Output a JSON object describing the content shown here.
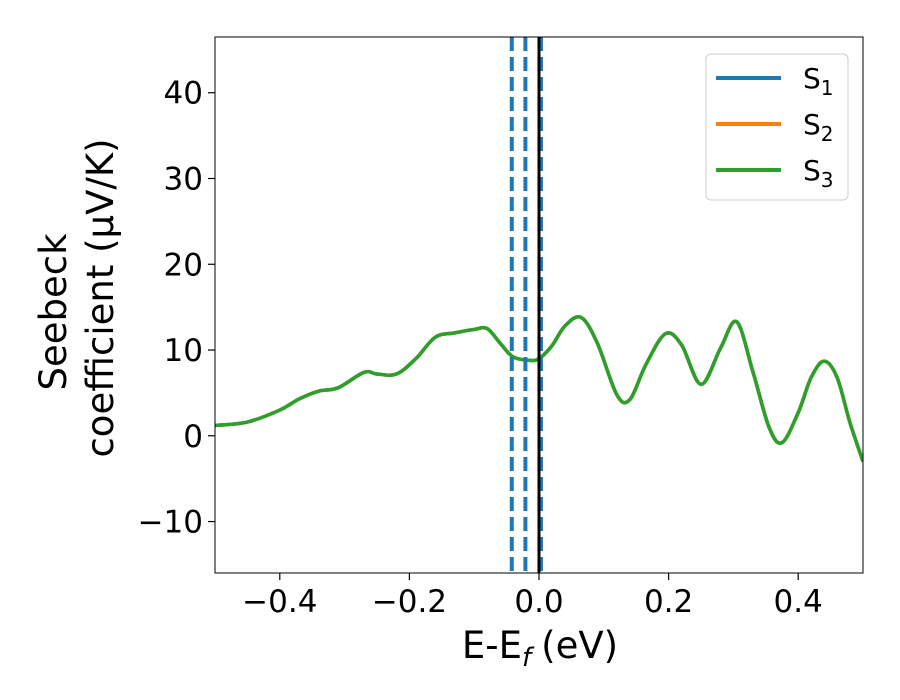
{
  "chart_data": {
    "type": "line",
    "title": "",
    "xlabel": "E-E",
    "xlabel_sub": "f",
    "xlabel_unit": "(eV)",
    "ylabel_line1": "Seebeck",
    "ylabel_line2": "coefficient  (μV/K)",
    "xlim": [
      -0.5,
      0.5
    ],
    "ylim": [
      -16,
      46.5
    ],
    "xticks": [
      -0.4,
      -0.2,
      0.0,
      0.2,
      0.4
    ],
    "xtick_labels": [
      "−0.4",
      "−0.2",
      "0.0",
      "0.2",
      "0.4"
    ],
    "yticks": [
      -10,
      0,
      10,
      20,
      30,
      40
    ],
    "ytick_labels": [
      "−10",
      "0",
      "10",
      "20",
      "30",
      "40"
    ],
    "grid": false,
    "legend_position": "top-right",
    "series": [
      {
        "name": "S",
        "name_sub": "1",
        "color": "#1f77b4",
        "x": [
          -0.5,
          -0.45,
          -0.4,
          -0.37,
          -0.34,
          -0.31,
          -0.27,
          -0.25,
          -0.22,
          -0.19,
          -0.16,
          -0.13,
          -0.1,
          -0.08,
          -0.06,
          -0.04,
          -0.015,
          0.0,
          0.02,
          0.04,
          0.065,
          0.09,
          0.12,
          0.14,
          0.165,
          0.195,
          0.22,
          0.25,
          0.28,
          0.305,
          0.33,
          0.355,
          0.375,
          0.4,
          0.42,
          0.44,
          0.46,
          0.48,
          0.5
        ],
        "y": [
          1.2,
          1.6,
          3.0,
          4.3,
          5.2,
          5.6,
          7.4,
          7.2,
          7.2,
          9.0,
          11.5,
          12.0,
          12.4,
          12.5,
          10.8,
          9.2,
          8.8,
          9.0,
          10.5,
          12.8,
          13.8,
          10.8,
          4.8,
          4.2,
          8.3,
          11.9,
          10.6,
          6.0,
          10.2,
          13.3,
          7.5,
          1.0,
          -0.8,
          2.7,
          6.8,
          8.7,
          6.8,
          1.5,
          -3.0
        ]
      },
      {
        "name": "S",
        "name_sub": "2",
        "color": "#ff7f0e",
        "x": [
          -0.5,
          -0.45,
          -0.4,
          -0.37,
          -0.34,
          -0.31,
          -0.27,
          -0.25,
          -0.22,
          -0.19,
          -0.16,
          -0.13,
          -0.1,
          -0.08,
          -0.06,
          -0.04,
          -0.015,
          0.0,
          0.02,
          0.04,
          0.065,
          0.09,
          0.12,
          0.14,
          0.165,
          0.195,
          0.22,
          0.25,
          0.28,
          0.305,
          0.33,
          0.355,
          0.375,
          0.4,
          0.42,
          0.44,
          0.46,
          0.48,
          0.5
        ],
        "y": [
          1.2,
          1.6,
          3.0,
          4.3,
          5.2,
          5.6,
          7.4,
          7.2,
          7.2,
          9.0,
          11.5,
          12.0,
          12.4,
          12.5,
          10.8,
          9.2,
          8.8,
          9.0,
          10.5,
          12.8,
          13.8,
          10.8,
          4.8,
          4.2,
          8.3,
          11.9,
          10.6,
          6.0,
          10.2,
          13.3,
          7.5,
          1.0,
          -0.8,
          2.7,
          6.8,
          8.7,
          6.8,
          1.5,
          -3.0
        ]
      },
      {
        "name": "S",
        "name_sub": "3",
        "color": "#2ca02c",
        "x": [
          -0.5,
          -0.45,
          -0.4,
          -0.37,
          -0.34,
          -0.31,
          -0.27,
          -0.25,
          -0.22,
          -0.19,
          -0.16,
          -0.13,
          -0.1,
          -0.08,
          -0.06,
          -0.04,
          -0.015,
          0.0,
          0.02,
          0.04,
          0.065,
          0.09,
          0.12,
          0.14,
          0.165,
          0.195,
          0.22,
          0.25,
          0.28,
          0.305,
          0.33,
          0.355,
          0.375,
          0.4,
          0.42,
          0.44,
          0.46,
          0.48,
          0.5
        ],
        "y": [
          1.2,
          1.6,
          3.0,
          4.3,
          5.2,
          5.6,
          7.4,
          7.2,
          7.2,
          9.0,
          11.5,
          12.0,
          12.4,
          12.5,
          10.8,
          9.2,
          8.8,
          9.0,
          10.5,
          12.8,
          13.8,
          10.8,
          4.8,
          4.2,
          8.3,
          11.9,
          10.6,
          6.0,
          10.2,
          13.3,
          7.5,
          1.0,
          -0.8,
          2.7,
          6.8,
          8.7,
          6.8,
          1.5,
          -3.0
        ]
      }
    ],
    "vlines": [
      {
        "x": -0.042,
        "style": "dashed",
        "color": "#1f77b4"
      },
      {
        "x": -0.021,
        "style": "dashed",
        "color": "#1f77b4"
      },
      {
        "x": 0.003,
        "style": "dashed",
        "color": "#1f77b4"
      },
      {
        "x": 0.0,
        "style": "solid",
        "color": "#000000"
      }
    ]
  }
}
